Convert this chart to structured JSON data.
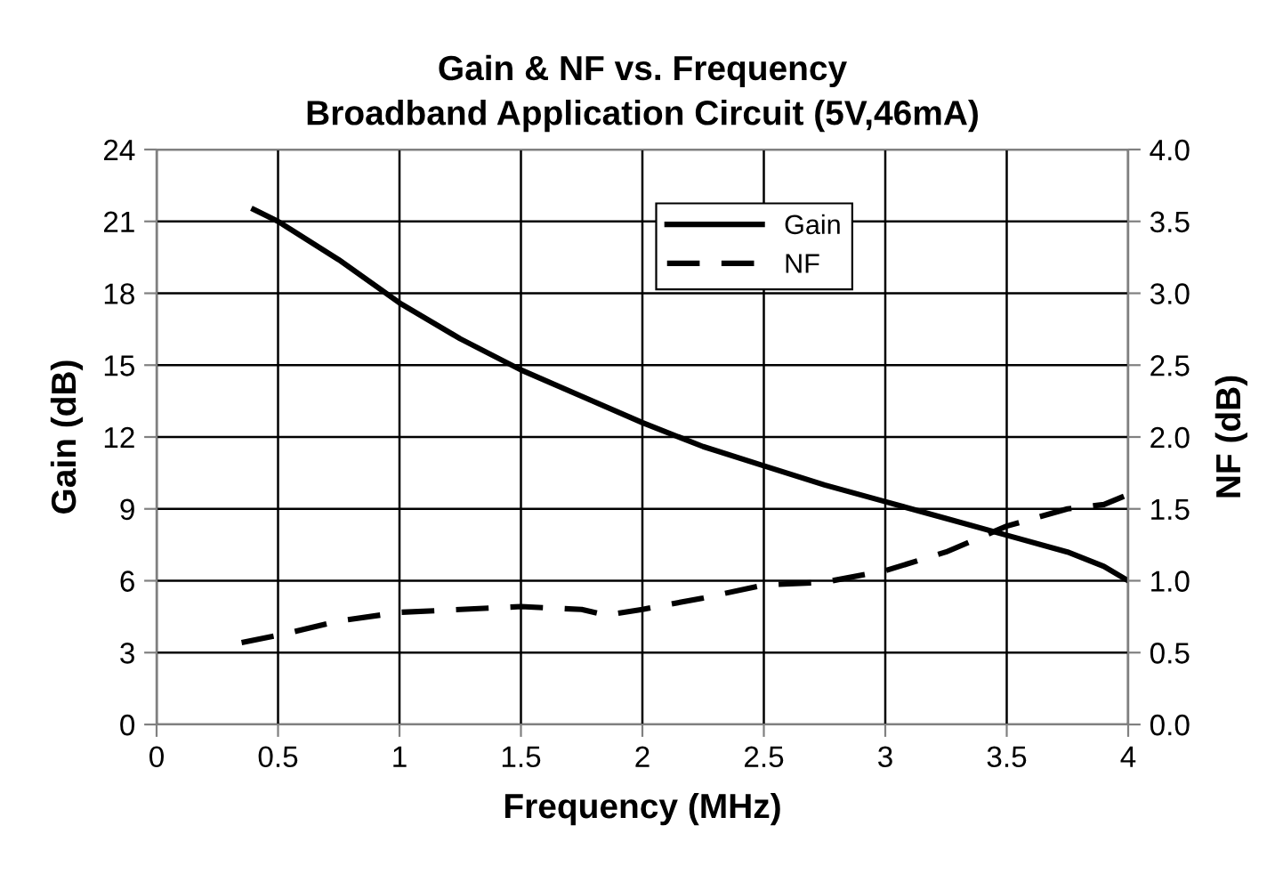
{
  "chart_data": {
    "type": "line",
    "title": "Gain & NF vs. Frequency\nBroadband Application Circuit (5V,46mA)",
    "xlabel": "Frequency (MHz)",
    "ylabel": "Gain (dB)",
    "y2label": "NF (dB)",
    "xlim": [
      0,
      4
    ],
    "xticks": [
      0,
      0.5,
      1,
      1.5,
      2,
      2.5,
      3,
      3.5,
      4
    ],
    "ylim": [
      0,
      24
    ],
    "yticks": [
      0,
      3,
      6,
      9,
      12,
      15,
      18,
      21,
      24
    ],
    "y2lim": [
      0,
      4
    ],
    "y2ticks": [
      {
        "value": 0,
        "label": "0.0"
      },
      {
        "value": 0.5,
        "label": "0.5"
      },
      {
        "value": 1,
        "label": "1.0"
      },
      {
        "value": 1.5,
        "label": "1.5"
      },
      {
        "value": 2,
        "label": "2.0"
      },
      {
        "value": 2.5,
        "label": "2.5"
      },
      {
        "value": 3,
        "label": "3.0"
      },
      {
        "value": 3.5,
        "label": "3.5"
      },
      {
        "value": 4,
        "label": "4.0"
      }
    ],
    "grid": true,
    "legend": "top right",
    "marker": "none",
    "series": [
      {
        "name": "Gain",
        "color": "#000000",
        "line_style": "solid",
        "x": [
          0.4,
          0.5,
          0.75,
          1,
          1.25,
          1.5,
          1.75,
          2,
          2.25,
          2.5,
          2.75,
          3,
          3.25,
          3.5,
          3.75,
          3.9,
          4
        ],
        "values": [
          21.5,
          21,
          19.4,
          17.6,
          16.1,
          14.8,
          13.7,
          12.6,
          11.6,
          10.8,
          10,
          9.3,
          8.6,
          7.9,
          7.2,
          6.6,
          6
        ]
      },
      {
        "name": "NF",
        "color": "#000000",
        "line_style": "dashed",
        "axis": "y2",
        "x": [
          0.35,
          0.5,
          0.75,
          1,
          1.25,
          1.5,
          1.75,
          1.85,
          2,
          2.25,
          2.5,
          2.75,
          3,
          3.25,
          3.5,
          3.75,
          3.9,
          4
        ],
        "values": [
          0.57,
          0.62,
          0.72,
          0.78,
          0.8,
          0.82,
          0.8,
          0.76,
          0.8,
          0.88,
          0.97,
          0.99,
          1.07,
          1.2,
          1.38,
          1.5,
          1.53,
          1.6
        ]
      }
    ]
  }
}
